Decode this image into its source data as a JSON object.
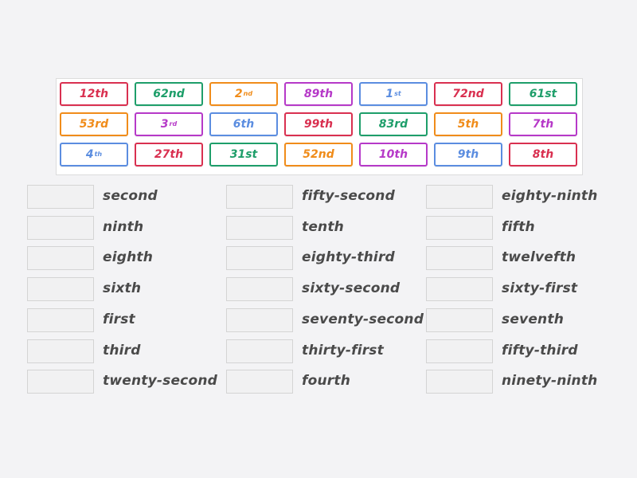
{
  "colors": {
    "red": "#d93050",
    "green": "#1e9e6a",
    "orange": "#f08c1a",
    "purple": "#b639c8",
    "blue": "#5b8de0"
  },
  "tiles": [
    [
      {
        "num": "12th",
        "sup": "",
        "color": "red"
      },
      {
        "num": "62nd",
        "sup": "",
        "color": "green"
      },
      {
        "num": "2",
        "sup": "nd",
        "color": "orange"
      },
      {
        "num": "89th",
        "sup": "",
        "color": "purple"
      },
      {
        "num": "1",
        "sup": "st",
        "color": "blue"
      },
      {
        "num": "72nd",
        "sup": "",
        "color": "red"
      },
      {
        "num": "61st",
        "sup": "",
        "color": "green"
      }
    ],
    [
      {
        "num": "53rd",
        "sup": "",
        "color": "orange"
      },
      {
        "num": "3",
        "sup": "rd",
        "color": "purple"
      },
      {
        "num": "6th",
        "sup": "",
        "color": "blue"
      },
      {
        "num": "99th",
        "sup": "",
        "color": "red"
      },
      {
        "num": "83rd",
        "sup": "",
        "color": "green"
      },
      {
        "num": "5th",
        "sup": "",
        "color": "orange"
      },
      {
        "num": "7th",
        "sup": "",
        "color": "purple"
      }
    ],
    [
      {
        "num": "4",
        "sup": "th",
        "color": "blue"
      },
      {
        "num": "27th",
        "sup": "",
        "color": "red"
      },
      {
        "num": "31st",
        "sup": "",
        "color": "green"
      },
      {
        "num": "52nd",
        "sup": "",
        "color": "orange"
      },
      {
        "num": "10th",
        "sup": "",
        "color": "purple"
      },
      {
        "num": "9th",
        "sup": "",
        "color": "blue"
      },
      {
        "num": "8th",
        "sup": "",
        "color": "red"
      }
    ]
  ],
  "columns": [
    [
      "second",
      "ninth",
      "eighth",
      "sixth",
      "first",
      "third",
      "twenty-second"
    ],
    [
      "fifty-second",
      "tenth",
      "eighty-third",
      "sixty-second",
      "seventy-second",
      "thirty-first",
      "fourth"
    ],
    [
      "eighty-ninth",
      "fifth",
      "twelvefth",
      "sixty-first",
      "seventh",
      "fifty-third",
      "ninety-ninth"
    ]
  ]
}
